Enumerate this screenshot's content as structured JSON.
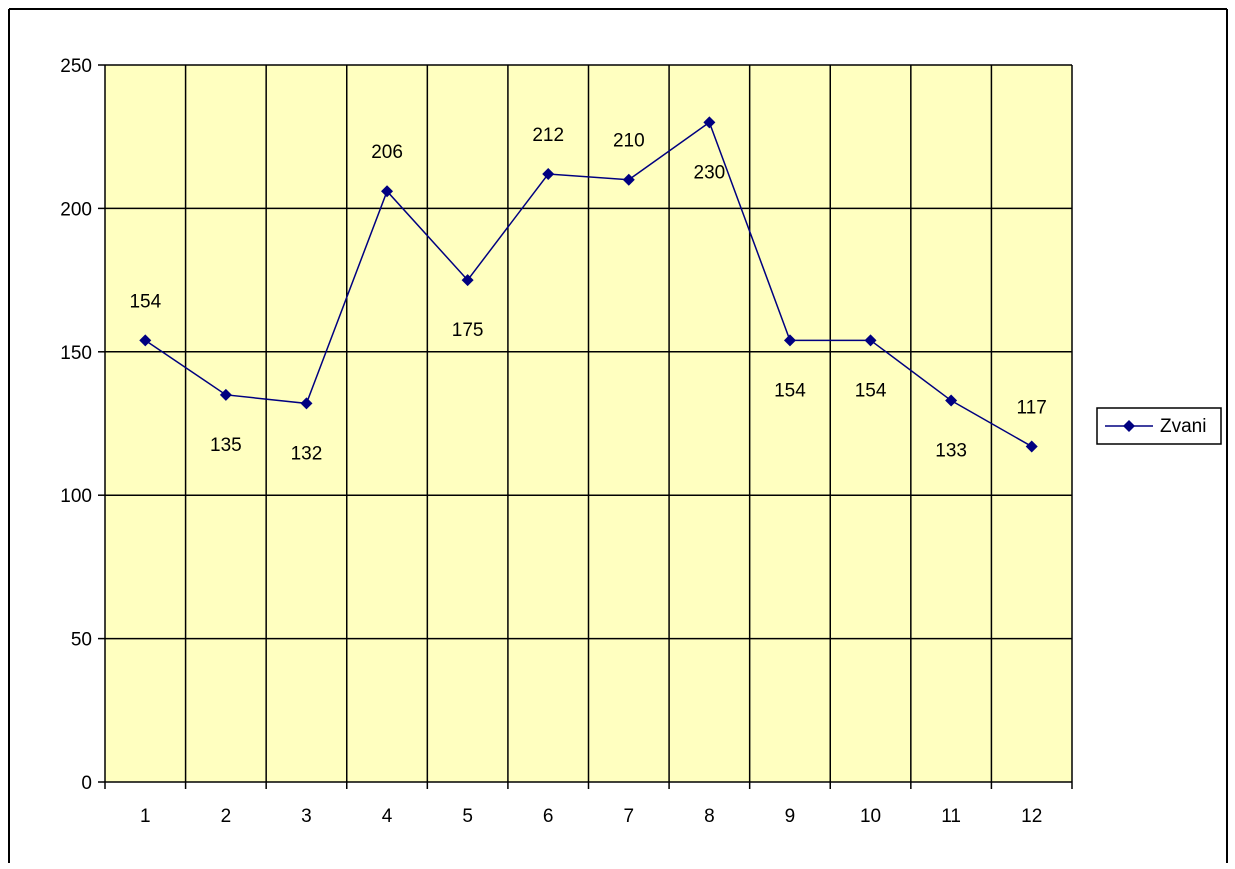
{
  "chart_data": {
    "type": "line",
    "title": "",
    "xlabel": "",
    "ylabel": "",
    "categories": [
      "1",
      "2",
      "3",
      "4",
      "5",
      "6",
      "7",
      "8",
      "9",
      "10",
      "11",
      "12"
    ],
    "series": [
      {
        "name": "Zvani",
        "values": [
          154,
          135,
          132,
          206,
          175,
          212,
          210,
          230,
          154,
          154,
          133,
          117
        ],
        "color": "#000080",
        "marker": "diamond"
      }
    ],
    "data_labels": [
      "154",
      "135",
      "132",
      "206",
      "175",
      "212",
      "210",
      "230",
      "154",
      "154",
      "133",
      "117"
    ],
    "y_ticks": [
      "0",
      "50",
      "100",
      "150",
      "200",
      "250"
    ],
    "ylim": [
      0,
      250
    ],
    "grid": true,
    "plot_background": "#ffffc0",
    "legend_position": "right"
  }
}
